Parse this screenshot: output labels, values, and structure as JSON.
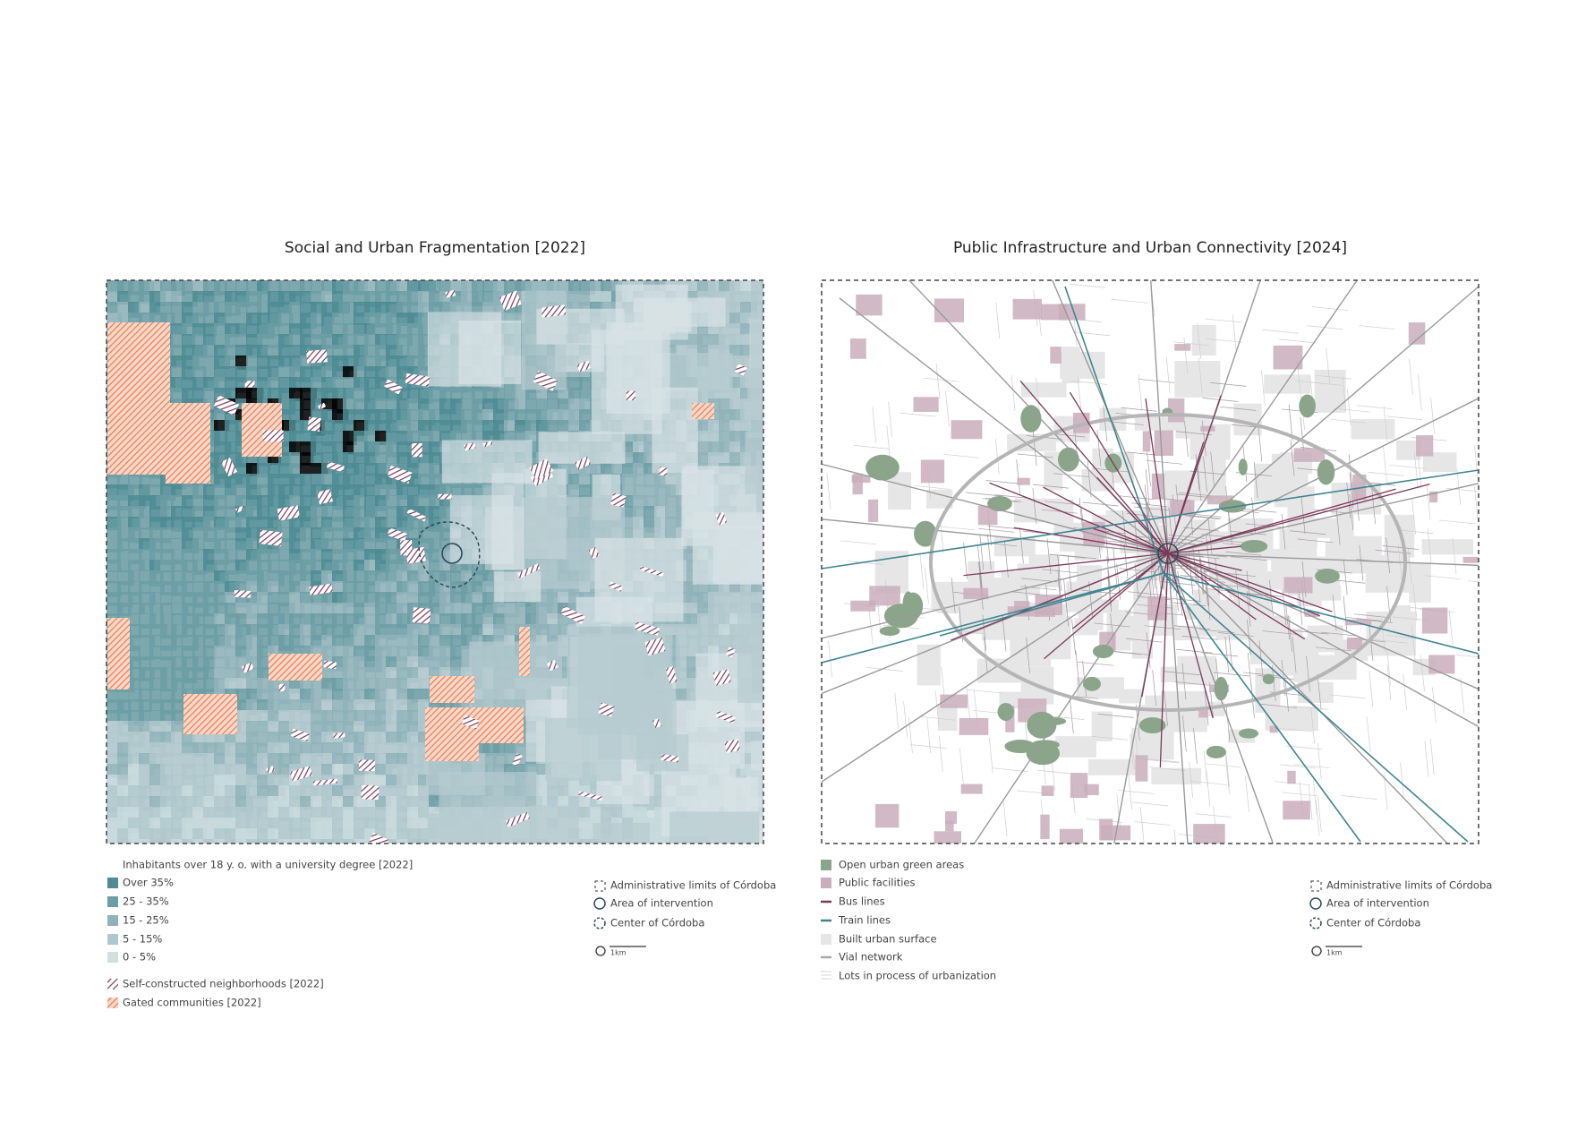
{
  "maps": [
    {
      "title": "Social and Urban Fragmentation",
      "year": "[2022]",
      "legend_heading": "Inhabitants over 18 y. o. with a university degree [2022]",
      "classes": [
        "Over 35%",
        "25 - 35%",
        "15 - 25%",
        "5 - 15%",
        "0 - 5%"
      ],
      "overlays": [
        "Self-constructed neighborhoods [2022]",
        "Gated communities [2022]"
      ],
      "reference": [
        "Administrative limits of Córdoba",
        "Area of intervention",
        "Center of Córdoba"
      ],
      "scale": "1km"
    },
    {
      "title": "Public Infrastructure and Urban Connectivity",
      "year": "[2024]",
      "items": [
        "Open urban green areas",
        "Public facilities",
        "Bus lines",
        "Train lines",
        "Built urban surface",
        "Vial network",
        "Lots in process of urbanization"
      ],
      "reference": [
        "Administrative limits of Córdoba",
        "Area of intervention",
        "Center of Córdoba"
      ],
      "scale": "1km"
    }
  ]
}
